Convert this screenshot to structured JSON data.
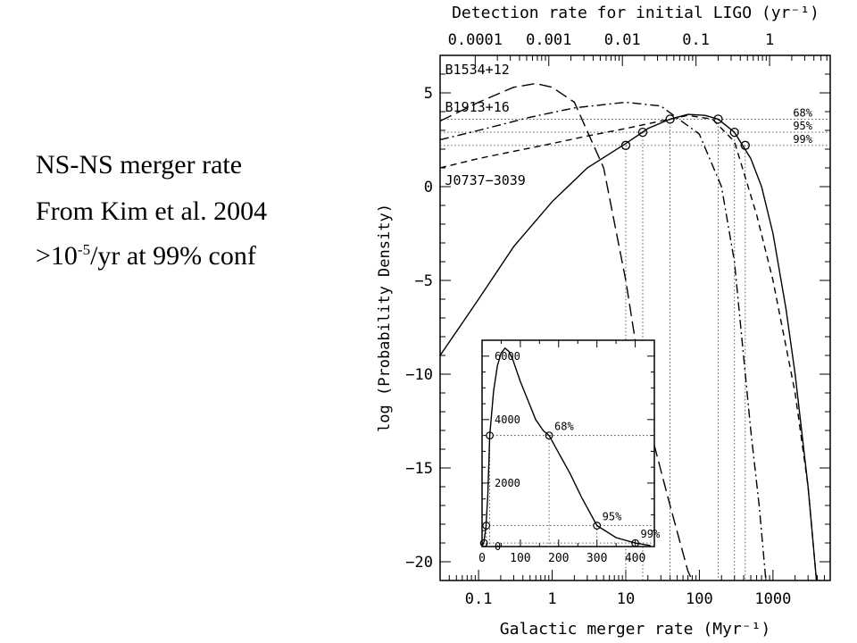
{
  "side_text": {
    "line1": "NS-NS merger rate",
    "line2": "From Kim et al. 2004",
    "line3_prefix": ">10",
    "line3_sup": "-5",
    "line3_suffix": "/yr at 99% conf"
  },
  "chart_data": [
    {
      "type": "line",
      "xscale": "log",
      "xlim": [
        0.03,
        6000
      ],
      "ylim": [
        -21,
        7
      ],
      "xlabel": "Galactic merger rate (Myr⁻¹)",
      "ylabel": "log (Probability Density)",
      "top_axis_label": "Detection rate for initial LIGO (yr⁻¹)",
      "x_ticks": [
        0.1,
        1,
        10,
        100,
        1000
      ],
      "x_tick_labels": [
        "0.1",
        "1",
        "10",
        "100",
        "1000"
      ],
      "y_ticks": [
        5,
        0,
        -5,
        -10,
        -15,
        -20
      ],
      "y_tick_labels": [
        "5",
        "0",
        "−5",
        "−10",
        "−15",
        "−20"
      ],
      "top_ticks": [
        0.0001,
        0.001,
        0.01,
        0.1,
        1
      ],
      "top_tick_labels": [
        "0.0001",
        "0.001",
        "0.01",
        "0.1",
        "1"
      ],
      "series": [
        {
          "name": "B1534+12",
          "dash": "long-dash",
          "x": [
            0.03,
            0.1,
            0.3,
            0.6,
            1,
            2,
            5,
            10,
            20,
            40,
            55,
            70,
            80
          ],
          "y": [
            3.5,
            4.5,
            5.3,
            5.5,
            5.3,
            4.5,
            1.0,
            -5.0,
            -12.5,
            -17.0,
            -19.0,
            -20.5,
            -21.0
          ]
        },
        {
          "name": "B1913+16",
          "dash": "dash-dot",
          "x": [
            0.03,
            0.1,
            0.5,
            2,
            10,
            30,
            100,
            200,
            300,
            500,
            650,
            800
          ],
          "y": [
            2.5,
            3.0,
            3.7,
            4.2,
            4.5,
            4.3,
            2.8,
            0.0,
            -4.0,
            -13.0,
            -17.0,
            -21.0
          ]
        },
        {
          "name": "J0737−3039",
          "dash": "short-dash",
          "x": [
            0.03,
            0.1,
            1,
            3,
            10,
            30,
            70,
            150,
            300,
            600,
            1000,
            2000,
            3000,
            3900
          ],
          "y": [
            1.0,
            1.5,
            2.3,
            2.7,
            3.1,
            3.5,
            3.8,
            3.6,
            2.4,
            -1.5,
            -5.0,
            -11.0,
            -16.0,
            -21.0
          ]
        },
        {
          "name": "",
          "dash": "solid",
          "x": [
            0.03,
            0.1,
            0.3,
            1,
            3,
            10,
            20,
            40,
            70,
            120,
            180,
            300,
            500,
            700,
            1000,
            1500,
            2000,
            3000,
            3900
          ],
          "y": [
            -9.0,
            -6.0,
            -3.2,
            -0.8,
            1.0,
            2.3,
            3.1,
            3.6,
            3.85,
            3.8,
            3.6,
            2.9,
            1.5,
            0.0,
            -2.5,
            -6.5,
            -10.0,
            -16.0,
            -21.0
          ]
        }
      ],
      "confidence_levels": [
        {
          "label": "68%",
          "y": 3.6,
          "x_low": 40,
          "x_high": 180
        },
        {
          "label": "95%",
          "y": 2.9,
          "x_low": 17,
          "x_high": 300
        },
        {
          "label": "99%",
          "y": 2.2,
          "x_low": 10,
          "x_high": 420
        }
      ]
    },
    {
      "type": "line",
      "inset": true,
      "xlim": [
        0,
        450
      ],
      "ylim": [
        0,
        6500
      ],
      "x_ticks": [
        0,
        100,
        200,
        300,
        400
      ],
      "x_tick_labels": [
        "0",
        "100",
        "200",
        "300",
        "400"
      ],
      "y_ticks": [
        0,
        2000,
        4000,
        6000
      ],
      "y_tick_labels": [
        "0",
        "2000",
        "4000",
        "6000"
      ],
      "series": [
        {
          "name": "",
          "x": [
            0,
            5,
            10,
            15,
            20,
            30,
            40,
            50,
            60,
            70,
            80,
            90,
            100,
            120,
            140,
            160,
            175,
            200,
            230,
            260,
            300,
            350,
            400,
            440
          ],
          "y": [
            0,
            150,
            600,
            1600,
            3500,
            4900,
            5700,
            6100,
            6250,
            6150,
            5900,
            5550,
            5200,
            4600,
            4000,
            3650,
            3500,
            2950,
            2300,
            1550,
            660,
            280,
            110,
            30
          ]
        }
      ],
      "confidence_levels": [
        {
          "label": "68%",
          "y": 3500,
          "x_low": 20,
          "x_high": 175
        },
        {
          "label": "95%",
          "y": 660,
          "x_low": 11,
          "x_high": 300
        },
        {
          "label": "99%",
          "y": 110,
          "x_low": 5,
          "x_high": 400
        }
      ]
    }
  ]
}
